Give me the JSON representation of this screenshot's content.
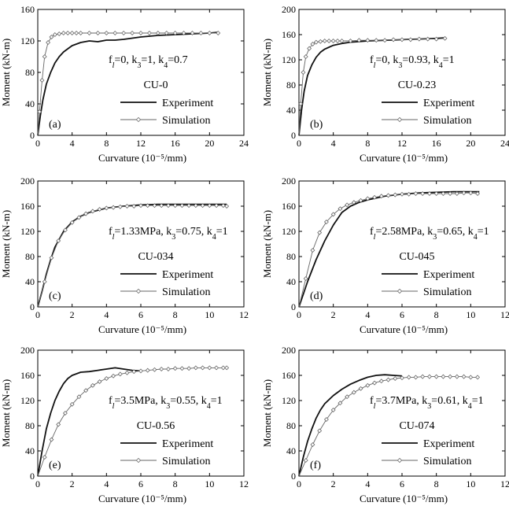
{
  "chart_data": [
    {
      "type": "line",
      "panel_label": "(a)",
      "xlabel": "Curvature (10⁻⁵/mm)",
      "ylabel": "Moment (kN-m)",
      "xlim": [
        0,
        24
      ],
      "ylim": [
        0,
        160
      ],
      "xticks": [
        0,
        4,
        8,
        12,
        16,
        20,
        24
      ],
      "yticks": [
        0,
        40,
        80,
        120,
        160
      ],
      "xtick_labels": [
        "0",
        "4",
        "8",
        "12",
        "16",
        "20",
        "24"
      ],
      "ytick_labels": [
        "0",
        "40",
        "80",
        "120",
        "160"
      ],
      "annotations": {
        "params": {
          "f": "f",
          "fsub": "l",
          "a": "=0, k",
          "asub": "3",
          "b": "=1, k",
          "bsub": "4",
          "c": "=0.7"
        },
        "specimen": "CU-0"
      },
      "legend": {
        "position": "bottom-right"
      },
      "series": [
        {
          "name": "Experiment",
          "style": "thick",
          "x": [
            0,
            0.3,
            0.6,
            1,
            1.5,
            2,
            2.5,
            3,
            3.5,
            4,
            5,
            6,
            7,
            8,
            9,
            10,
            12,
            14,
            16,
            18,
            20,
            21
          ],
          "y": [
            0,
            25,
            45,
            65,
            80,
            92,
            100,
            106,
            110,
            114,
            118,
            120,
            119,
            121,
            121,
            122,
            125,
            127,
            128,
            129,
            130,
            131
          ]
        },
        {
          "name": "Simulation",
          "style": "thin-markers",
          "x": [
            0,
            0.2,
            0.5,
            0.8,
            1.2,
            1.6,
            2,
            2.5,
            3,
            3.5,
            4,
            4.5,
            5,
            6,
            7,
            8,
            9,
            10,
            11,
            12,
            13,
            14,
            15,
            16,
            17,
            18,
            19,
            20,
            21
          ],
          "y": [
            0,
            30,
            70,
            100,
            118,
            125,
            128,
            129,
            130,
            130,
            130,
            130,
            130,
            130,
            130,
            130,
            130,
            130,
            130,
            130,
            130,
            130,
            130,
            130,
            130,
            130,
            130,
            130,
            130
          ]
        }
      ]
    },
    {
      "type": "line",
      "panel_label": "(b)",
      "xlabel": "Curvature (10⁻⁵/mm)",
      "ylabel": "Moment (kN-m)",
      "xlim": [
        0,
        24
      ],
      "ylim": [
        0,
        200
      ],
      "xticks": [
        0,
        4,
        8,
        12,
        16,
        20,
        24
      ],
      "yticks": [
        0,
        40,
        80,
        120,
        160,
        200
      ],
      "xtick_labels": [
        "0",
        "4",
        "8",
        "12",
        "16",
        "20",
        "24"
      ],
      "ytick_labels": [
        "0",
        "40",
        "80",
        "120",
        "160",
        "200"
      ],
      "annotations": {
        "params": {
          "f": "f",
          "fsub": "l",
          "a": "=0, k",
          "asub": "3",
          "b": "=0.93, k",
          "bsub": "4",
          "c": "=1"
        },
        "specimen": "CU-0.23"
      },
      "legend": {
        "position": "bottom-right"
      },
      "series": [
        {
          "name": "Experiment",
          "style": "thick",
          "x": [
            0,
            0.3,
            0.6,
            1,
            1.5,
            2,
            2.5,
            3,
            3.5,
            4,
            5,
            6,
            7,
            8,
            10,
            12,
            14,
            16,
            17
          ],
          "y": [
            0,
            40,
            70,
            95,
            112,
            124,
            132,
            137,
            140,
            143,
            146,
            148,
            149,
            150,
            151,
            152,
            153,
            154,
            155
          ]
        },
        {
          "name": "Simulation",
          "style": "thin-markers",
          "x": [
            0,
            0.2,
            0.5,
            0.8,
            1.2,
            1.6,
            2,
            2.5,
            3,
            3.5,
            4,
            4.5,
            5,
            6,
            7,
            8,
            9,
            10,
            11,
            12,
            13,
            14,
            15,
            16,
            17
          ],
          "y": [
            0,
            50,
            100,
            125,
            138,
            145,
            148,
            149,
            150,
            150,
            150,
            150,
            150,
            150,
            151,
            151,
            151,
            151,
            152,
            152,
            152,
            153,
            153,
            153,
            154
          ]
        }
      ]
    },
    {
      "type": "line",
      "panel_label": "(c)",
      "xlabel": "Curvature (10⁻⁵/mm)",
      "ylabel": "Moment (kN-m)",
      "xlim": [
        0,
        12
      ],
      "ylim": [
        0,
        200
      ],
      "xticks": [
        0,
        2,
        4,
        6,
        8,
        10,
        12
      ],
      "yticks": [
        0,
        40,
        80,
        120,
        160,
        200
      ],
      "xtick_labels": [
        "0",
        "2",
        "4",
        "6",
        "8",
        "10",
        "12"
      ],
      "ytick_labels": [
        "0",
        "40",
        "80",
        "120",
        "160",
        "200"
      ],
      "annotations": {
        "params": {
          "f": "f",
          "fsub": "l",
          "a": "=1.33MPa, k",
          "asub": "3",
          "b": "=0.75, k",
          "bsub": "4",
          "c": "=1"
        },
        "specimen": "CU-034"
      },
      "legend": {
        "position": "bottom-right"
      },
      "series": [
        {
          "name": "Experiment",
          "style": "thick",
          "x": [
            0,
            0.25,
            0.5,
            0.75,
            1,
            1.5,
            2,
            2.5,
            3,
            4,
            5,
            6,
            7,
            8,
            9,
            10,
            11
          ],
          "y": [
            0,
            25,
            52,
            75,
            95,
            120,
            135,
            144,
            150,
            157,
            160,
            162,
            163,
            163,
            163,
            163,
            163
          ]
        },
        {
          "name": "Simulation",
          "style": "thin-markers",
          "x": [
            0,
            0.4,
            0.8,
            1.2,
            1.6,
            2.0,
            2.4,
            2.8,
            3.2,
            3.6,
            4.0,
            4.4,
            4.8,
            5.2,
            5.6,
            6.0,
            6.4,
            6.8,
            7.2,
            7.6,
            8.0,
            8.4,
            8.8,
            9.2,
            9.6,
            10.0,
            10.4,
            10.8,
            11.0
          ],
          "y": [
            0,
            40,
            78,
            105,
            122,
            134,
            142,
            148,
            152,
            155,
            157,
            158,
            159,
            160,
            160,
            161,
            161,
            161,
            161,
            161,
            161,
            161,
            161,
            161,
            161,
            161,
            161,
            161,
            160
          ]
        }
      ]
    },
    {
      "type": "line",
      "panel_label": "(d)",
      "xlabel": "Curvature (10⁻⁵/mm)",
      "ylabel": "Moment (kN-m)",
      "xlim": [
        0,
        12
      ],
      "ylim": [
        0,
        200
      ],
      "xticks": [
        0,
        2,
        4,
        6,
        8,
        10,
        12
      ],
      "yticks": [
        0,
        40,
        80,
        120,
        160,
        200
      ],
      "xtick_labels": [
        "0",
        "2",
        "4",
        "6",
        "8",
        "10",
        "12"
      ],
      "ytick_labels": [
        "0",
        "40",
        "80",
        "120",
        "160",
        "200"
      ],
      "annotations": {
        "params": {
          "f": "f",
          "fsub": "l",
          "a": "=2.58MPa, k",
          "asub": "3",
          "b": "=0.65, k",
          "bsub": "4",
          "c": "=1"
        },
        "specimen": "CU-045"
      },
      "legend": {
        "position": "bottom-right"
      },
      "series": [
        {
          "name": "Experiment",
          "style": "thick",
          "x": [
            0,
            0.25,
            0.5,
            1,
            1.5,
            2,
            2.5,
            3,
            3.5,
            4,
            5,
            6,
            7,
            8,
            9,
            10,
            10.5
          ],
          "y": [
            0,
            20,
            40,
            75,
            105,
            130,
            150,
            160,
            166,
            170,
            176,
            179,
            181,
            182,
            183,
            183,
            183
          ]
        },
        {
          "name": "Simulation",
          "style": "thin-markers",
          "x": [
            0,
            0.4,
            0.8,
            1.2,
            1.6,
            2.0,
            2.4,
            2.8,
            3.2,
            3.6,
            4.0,
            4.4,
            4.8,
            5.2,
            5.6,
            6.0,
            6.4,
            6.8,
            7.2,
            7.6,
            8.0,
            8.4,
            8.8,
            9.2,
            9.6,
            10.0,
            10.4
          ],
          "y": [
            0,
            45,
            90,
            118,
            135,
            147,
            156,
            162,
            166,
            169,
            172,
            174,
            176,
            177,
            178,
            179,
            179,
            180,
            180,
            180,
            180,
            180,
            180,
            180,
            181,
            181,
            180
          ]
        }
      ]
    },
    {
      "type": "line",
      "panel_label": "(e)",
      "xlabel": "Curvature (10⁻⁵/mm)",
      "ylabel": "Moment (kN-m)",
      "xlim": [
        0,
        12
      ],
      "ylim": [
        0,
        200
      ],
      "xticks": [
        0,
        2,
        4,
        6,
        8,
        10,
        12
      ],
      "yticks": [
        0,
        40,
        80,
        120,
        160,
        200
      ],
      "xtick_labels": [
        "0",
        "2",
        "4",
        "6",
        "8",
        "10",
        "12"
      ],
      "ytick_labels": [
        "0",
        "40",
        "80",
        "120",
        "160",
        "200"
      ],
      "annotations": {
        "params": {
          "f": "f",
          "fsub": "l",
          "a": "=3.5MPa, k",
          "asub": "3",
          "b": "=0.55, k",
          "bsub": "4",
          "c": "=1"
        },
        "specimen": "CU-0.56"
      },
      "legend": {
        "position": "bottom-right"
      },
      "series": [
        {
          "name": "Experiment",
          "style": "thick",
          "x": [
            0,
            0.25,
            0.5,
            0.75,
            1,
            1.25,
            1.5,
            1.75,
            2,
            2.5,
            3,
            3.5,
            4,
            4.5,
            5,
            5.5,
            6
          ],
          "y": [
            0,
            40,
            75,
            100,
            120,
            135,
            147,
            155,
            160,
            165,
            166,
            168,
            170,
            172,
            170,
            168,
            167
          ]
        },
        {
          "name": "Simulation",
          "style": "thin-markers",
          "x": [
            0,
            0.4,
            0.8,
            1.2,
            1.6,
            2.0,
            2.4,
            2.8,
            3.2,
            3.6,
            4.0,
            4.4,
            4.8,
            5.2,
            5.6,
            6.0,
            6.4,
            6.8,
            7.2,
            7.6,
            8.0,
            8.4,
            8.8,
            9.2,
            9.6,
            10.0,
            10.4,
            10.8,
            11.0
          ],
          "y": [
            0,
            30,
            58,
            82,
            100,
            114,
            126,
            136,
            144,
            150,
            155,
            159,
            162,
            164,
            166,
            167,
            168,
            169,
            170,
            170,
            171,
            171,
            171,
            172,
            172,
            172,
            172,
            172,
            172
          ]
        }
      ]
    },
    {
      "type": "line",
      "panel_label": "(f)",
      "xlabel": "Curvature (10⁻⁵/mm)",
      "ylabel": "Moment (kN-m)",
      "xlim": [
        0,
        12
      ],
      "ylim": [
        0,
        200
      ],
      "xticks": [
        0,
        2,
        4,
        6,
        8,
        10,
        12
      ],
      "yticks": [
        0,
        40,
        80,
        120,
        160,
        200
      ],
      "xtick_labels": [
        "0",
        "2",
        "4",
        "6",
        "8",
        "10",
        "12"
      ],
      "ytick_labels": [
        "0",
        "40",
        "80",
        "120",
        "160",
        "200"
      ],
      "annotations": {
        "params": {
          "f": "f",
          "fsub": "l",
          "a": "=3.7MPa, k",
          "asub": "3",
          "b": "=0.61, k",
          "bsub": "4",
          "c": "=1"
        },
        "specimen": "CU-074"
      },
      "legend": {
        "position": "bottom-right"
      },
      "series": [
        {
          "name": "Experiment",
          "style": "thick",
          "x": [
            0,
            0.25,
            0.5,
            0.75,
            1,
            1.25,
            1.5,
            2,
            2.5,
            3,
            3.5,
            4,
            4.5,
            5,
            5.5,
            6
          ],
          "y": [
            0,
            30,
            55,
            75,
            92,
            105,
            115,
            128,
            138,
            146,
            152,
            157,
            160,
            161,
            160,
            159
          ]
        },
        {
          "name": "Simulation",
          "style": "thin-markers",
          "x": [
            0,
            0.4,
            0.8,
            1.2,
            1.6,
            2.0,
            2.4,
            2.8,
            3.2,
            3.6,
            4.0,
            4.4,
            4.8,
            5.2,
            5.6,
            6.0,
            6.4,
            6.8,
            7.2,
            7.6,
            8.0,
            8.4,
            8.8,
            9.2,
            9.6,
            10.0,
            10.4
          ],
          "y": [
            0,
            25,
            50,
            72,
            90,
            105,
            116,
            126,
            133,
            139,
            144,
            148,
            151,
            153,
            155,
            156,
            157,
            157,
            158,
            158,
            158,
            158,
            158,
            158,
            158,
            157,
            157
          ]
        }
      ]
    }
  ]
}
